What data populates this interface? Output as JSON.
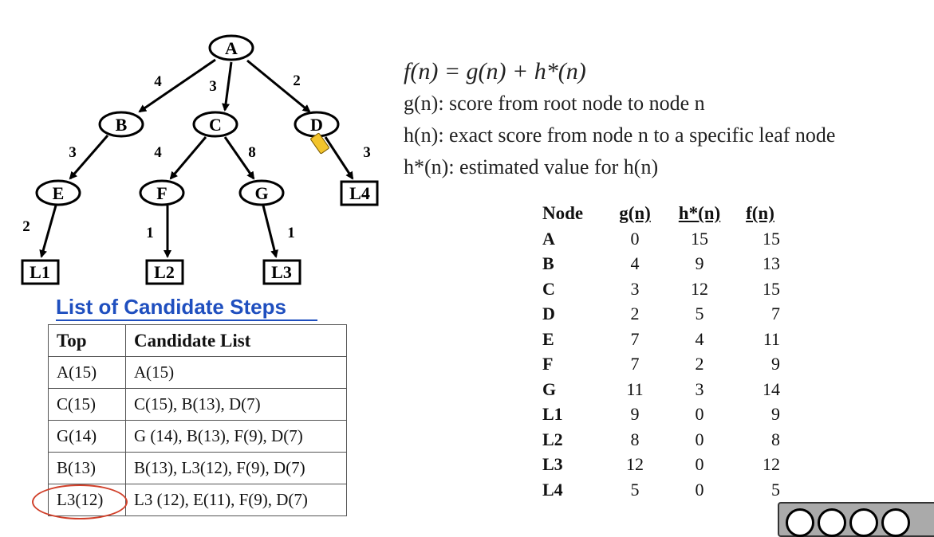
{
  "tree": {
    "nodes": {
      "A": "A",
      "B": "B",
      "C": "C",
      "D": "D",
      "E": "E",
      "F": "F",
      "G": "G",
      "L1": "L1",
      "L2": "L2",
      "L3": "L3",
      "L4": "L4"
    },
    "edges": {
      "A_B": "4",
      "A_C": "3",
      "A_D": "2",
      "B_E": "3",
      "C_F": "4",
      "C_G": "8",
      "D_L4": "3",
      "E_L1": "2",
      "F_L2": "1",
      "G_L3": "1"
    }
  },
  "formulas": {
    "f": "f(n) = g(n) + h*(n)",
    "g": "g(n): score from root node to node n",
    "h": "h(n): exact score from node n  to a specific leaf node",
    "hstar": "h*(n): estimated value for h(n)"
  },
  "candidate": {
    "title": "List of Candidate Steps",
    "headers": [
      "Top",
      "Candidate List"
    ],
    "rows": [
      [
        "A(15)",
        "A(15)"
      ],
      [
        "C(15)",
        "C(15), B(13), D(7)"
      ],
      [
        "G(14)",
        "G (14), B(13), F(9), D(7)"
      ],
      [
        "B(13)",
        "B(13), L3(12), F(9), D(7)"
      ],
      [
        "L3(12)",
        "L3  (12), E(11), F(9), D(7)"
      ]
    ]
  },
  "values": {
    "headers": [
      "Node",
      "g(n)",
      "h*(n)",
      "f(n)"
    ],
    "rows": [
      [
        "A",
        "0",
        "15",
        "15"
      ],
      [
        "B",
        "4",
        "9",
        "13"
      ],
      [
        "C",
        "3",
        "12",
        "15"
      ],
      [
        "D",
        "2",
        "5",
        "7"
      ],
      [
        "E",
        "7",
        "4",
        "11"
      ],
      [
        "F",
        "7",
        "2",
        "9"
      ],
      [
        "G",
        "11",
        "3",
        "14"
      ],
      [
        "L1",
        "9",
        "0",
        "9"
      ],
      [
        "L2",
        "8",
        "0",
        "8"
      ],
      [
        "L3",
        "12",
        "0",
        "12"
      ],
      [
        "L4",
        "5",
        "0",
        "5"
      ]
    ]
  },
  "colors": {
    "title": "#1f4fbf",
    "highlight_circle": "#d0402a"
  },
  "icons": [
    "cursor-icon",
    "creative-commons-badge-icon"
  ]
}
